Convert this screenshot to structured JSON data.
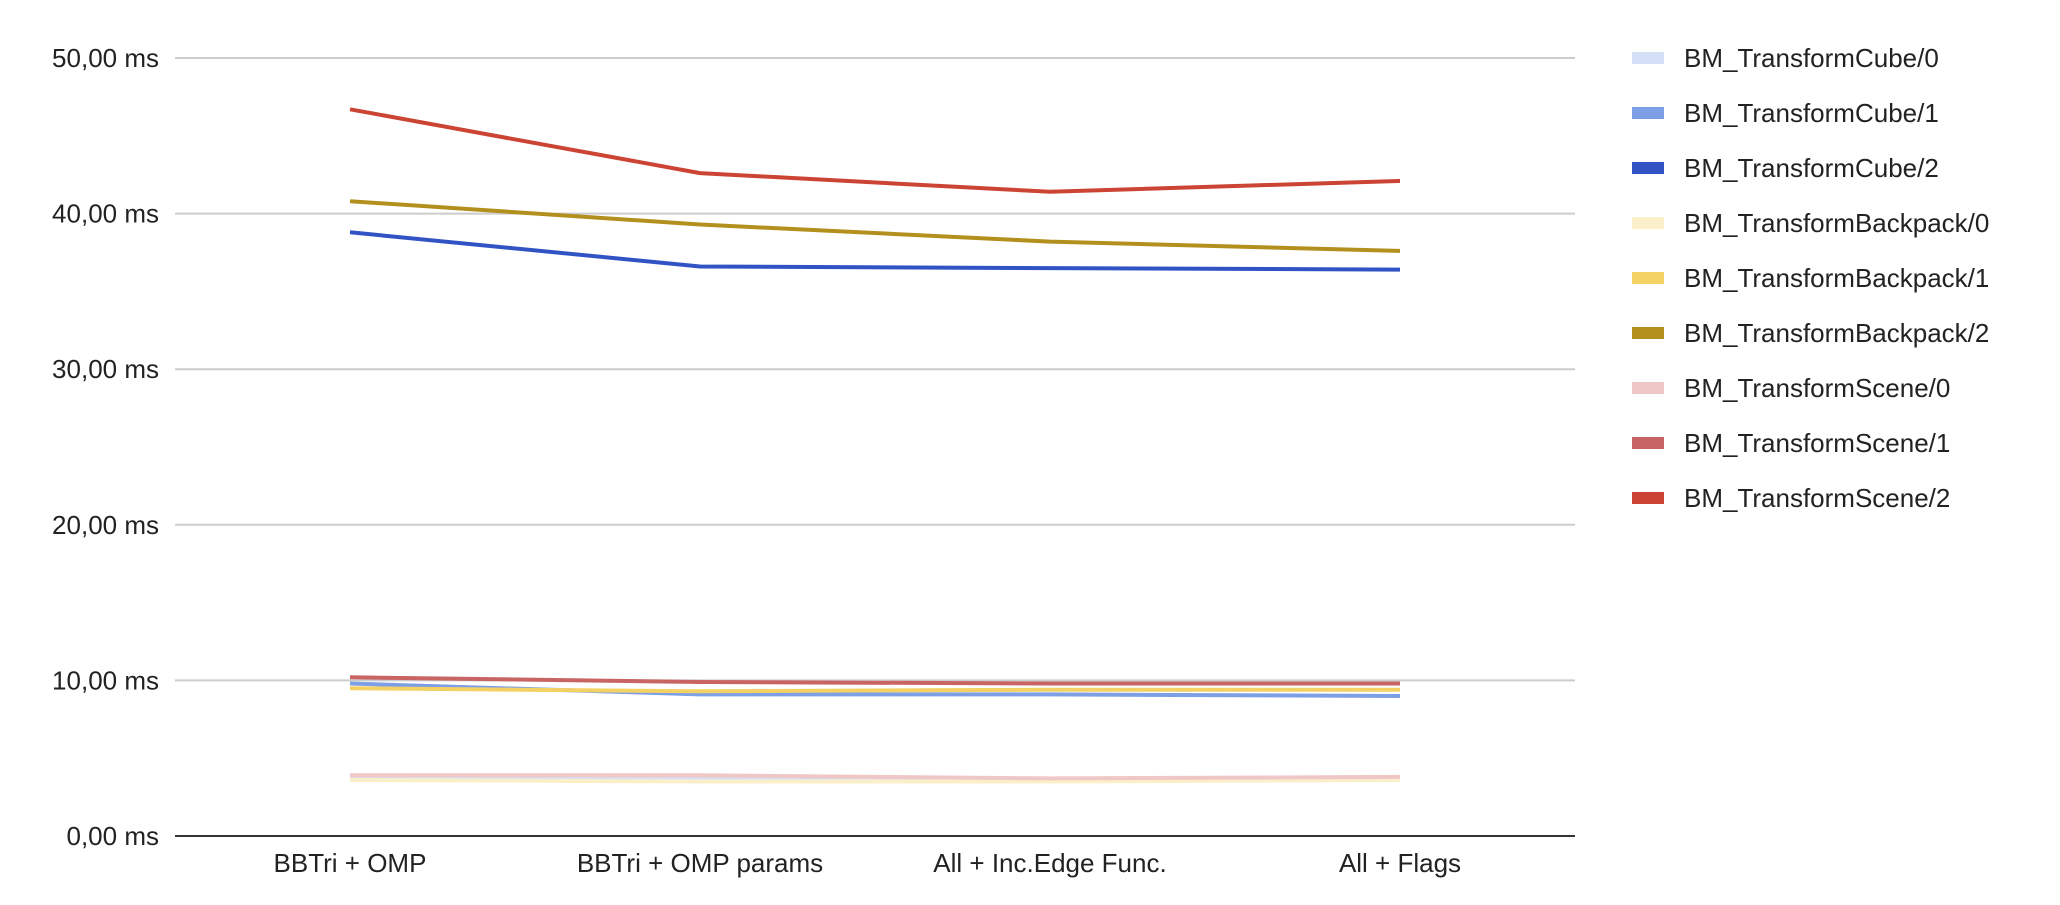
{
  "chart_data": {
    "type": "line",
    "title": "",
    "xlabel": "",
    "ylabel": "",
    "categories": [
      "BBTri + OMP",
      "BBTri + OMP params",
      "All + Inc.Edge Func.",
      "All + Flags"
    ],
    "y_ticks": [
      "0,00 ms",
      "10,00 ms",
      "20,00 ms",
      "30,00 ms",
      "40,00 ms",
      "50,00 ms"
    ],
    "ylim": [
      0,
      50
    ],
    "grid": true,
    "legend_position": "right",
    "series": [
      {
        "name": "BM_TransformCube/0",
        "color": "#d4e0f5",
        "values": [
          3.7,
          3.7,
          3.6,
          3.7
        ]
      },
      {
        "name": "BM_TransformCube/1",
        "color": "#7d9fe6",
        "values": [
          9.8,
          9.1,
          9.1,
          9.0
        ]
      },
      {
        "name": "BM_TransformCube/2",
        "color": "#3153c4",
        "values": [
          38.8,
          36.6,
          36.5,
          36.4
        ]
      },
      {
        "name": "BM_TransformBackpack/0",
        "color": "#fbefc9",
        "values": [
          3.6,
          3.5,
          3.5,
          3.6
        ]
      },
      {
        "name": "BM_TransformBackpack/1",
        "color": "#f4d164",
        "values": [
          9.5,
          9.3,
          9.4,
          9.4
        ]
      },
      {
        "name": "BM_TransformBackpack/2",
        "color": "#b38f1e",
        "values": [
          40.8,
          39.3,
          38.2,
          37.6
        ]
      },
      {
        "name": "BM_TransformScene/0",
        "color": "#f0c7c7",
        "values": [
          3.9,
          3.9,
          3.7,
          3.8
        ]
      },
      {
        "name": "BM_TransformScene/1",
        "color": "#c96464",
        "values": [
          10.2,
          9.9,
          9.8,
          9.8
        ]
      },
      {
        "name": "BM_TransformScene/2",
        "color": "#cc4433",
        "values": [
          46.7,
          42.6,
          41.4,
          42.1
        ]
      }
    ]
  }
}
